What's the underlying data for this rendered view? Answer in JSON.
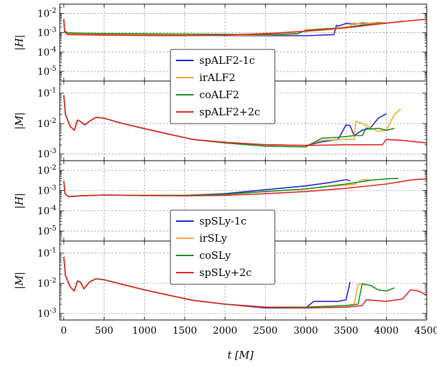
{
  "xlabel": "t [M]",
  "x_ticks": [
    0,
    500,
    1000,
    1500,
    2000,
    2500,
    3000,
    3500,
    4000,
    4500
  ],
  "colors": {
    "blue": "#1f1fcc",
    "orange": "#f5a623",
    "green": "#1a8a1a",
    "red": "#e02020"
  },
  "chart_data": [
    {
      "type": "line",
      "ylabel": "|H|",
      "ylog": true,
      "xlim": [
        -50,
        4500
      ],
      "ylim": [
        3.2e-06,
        0.03
      ],
      "y_ticks": [
        {
          "v": 0.01,
          "label": "10^-2"
        },
        {
          "v": 0.001,
          "label": "10^-3"
        },
        {
          "v": 0.0001,
          "label": "10^-4"
        },
        {
          "v": 1e-05,
          "label": "10^-5"
        }
      ],
      "legend": {
        "placement": "lower-center",
        "entries": [
          "spALF2-1c",
          "irALF2",
          "coALF2",
          "spALF2+2c"
        ]
      },
      "series": [
        {
          "name": "spALF2-1c",
          "color": "blue",
          "x": [
            0,
            10,
            50,
            200,
            500,
            1000,
            1500,
            2000,
            2500,
            3000,
            3350,
            3380,
            3400,
            3500,
            3600,
            3700,
            3800,
            3900,
            4000
          ],
          "y": [
            0.005,
            0.0012,
            0.0009,
            0.00085,
            0.0008,
            0.0008,
            0.00075,
            0.00072,
            0.0007,
            0.0007,
            0.0008,
            0.0024,
            0.0022,
            0.003,
            0.0028,
            0.0032,
            0.0031,
            0.0034,
            0.0032
          ]
        },
        {
          "name": "irALF2",
          "color": "orange",
          "x": [
            0,
            10,
            50,
            200,
            500,
            1000,
            1500,
            2000,
            2500,
            2900,
            2950,
            3000,
            3200,
            3400,
            3550,
            3580,
            3700,
            3800,
            3900,
            4000,
            4100,
            4200
          ],
          "y": [
            0.005,
            0.0012,
            0.0009,
            0.00085,
            0.0008,
            0.0008,
            0.00078,
            0.00075,
            0.00075,
            0.00085,
            0.0011,
            0.0014,
            0.0016,
            0.0018,
            0.0021,
            0.0031,
            0.0029,
            0.0031,
            0.0033,
            0.0032,
            0.0035,
            0.004
          ]
        },
        {
          "name": "coALF2",
          "color": "green",
          "x": [
            0,
            10,
            50,
            200,
            500,
            1000,
            1500,
            2000,
            2500,
            2900,
            3000,
            3200,
            3400,
            3500,
            3600,
            3700,
            3800,
            3900,
            4000
          ],
          "y": [
            0.005,
            0.0012,
            0.001,
            0.00095,
            0.0009,
            0.00088,
            0.00085,
            0.00082,
            0.0008,
            0.0009,
            0.0013,
            0.0015,
            0.0017,
            0.0018,
            0.0022,
            0.0025,
            0.0027,
            0.0029,
            0.003
          ]
        },
        {
          "name": "spALF2+2c",
          "color": "red",
          "x": [
            0,
            10,
            50,
            200,
            500,
            1000,
            1500,
            2000,
            2500,
            3000,
            3300,
            3600,
            3900,
            4200,
            4500
          ],
          "y": [
            0.005,
            0.0011,
            0.0008,
            0.00078,
            0.00075,
            0.00072,
            0.0007,
            0.00075,
            0.0009,
            0.0012,
            0.0015,
            0.002,
            0.0028,
            0.0038,
            0.005
          ]
        }
      ]
    },
    {
      "type": "line",
      "ylabel": "|M|",
      "ylog": true,
      "xlim": [
        -50,
        4500
      ],
      "ylim": [
        0.0006,
        0.25
      ],
      "y_ticks": [
        {
          "v": 0.1,
          "label": "10^-1"
        },
        {
          "v": 0.01,
          "label": "10^-2"
        },
        {
          "v": 0.001,
          "label": "10^-3"
        }
      ],
      "series": [
        {
          "name": "spALF2-1c",
          "color": "blue",
          "x": [
            0,
            20,
            80,
            130,
            170,
            210,
            260,
            320,
            400,
            500,
            700,
            1000,
            1300,
            1600,
            2000,
            2500,
            3000,
            3200,
            3400,
            3500,
            3550,
            3600,
            3700,
            3800,
            3900,
            4000
          ],
          "y": [
            0.085,
            0.02,
            0.008,
            0.006,
            0.013,
            0.0115,
            0.009,
            0.012,
            0.016,
            0.015,
            0.0105,
            0.0068,
            0.0045,
            0.003,
            0.0024,
            0.002,
            0.0019,
            0.0025,
            0.003,
            0.009,
            0.0085,
            0.004,
            0.006,
            0.007,
            0.015,
            0.021
          ]
        },
        {
          "name": "irALF2",
          "color": "orange",
          "x": [
            0,
            20,
            80,
            130,
            170,
            210,
            260,
            320,
            400,
            500,
            700,
            1000,
            1300,
            1600,
            2000,
            2500,
            3000,
            3200,
            3500,
            3600,
            3620,
            3700,
            3800,
            3900,
            4000,
            4100,
            4180
          ],
          "y": [
            0.085,
            0.02,
            0.008,
            0.006,
            0.013,
            0.0115,
            0.009,
            0.012,
            0.016,
            0.015,
            0.0105,
            0.0068,
            0.0045,
            0.003,
            0.0024,
            0.002,
            0.0019,
            0.0028,
            0.003,
            0.003,
            0.012,
            0.01,
            0.0075,
            0.0055,
            0.006,
            0.02,
            0.03
          ]
        },
        {
          "name": "coALF2",
          "color": "green",
          "x": [
            0,
            20,
            80,
            130,
            170,
            210,
            260,
            320,
            400,
            500,
            700,
            1000,
            1300,
            1600,
            2000,
            2500,
            3000,
            3200,
            3400,
            3600,
            3700,
            3750,
            3800,
            3900,
            4000,
            4100
          ],
          "y": [
            0.085,
            0.02,
            0.008,
            0.006,
            0.013,
            0.0115,
            0.009,
            0.012,
            0.016,
            0.015,
            0.0105,
            0.0068,
            0.0045,
            0.003,
            0.0023,
            0.0018,
            0.0017,
            0.0033,
            0.0035,
            0.004,
            0.004,
            0.0072,
            0.0065,
            0.007,
            0.006,
            0.007
          ]
        },
        {
          "name": "spALF2+2c",
          "color": "red",
          "x": [
            0,
            20,
            80,
            130,
            170,
            210,
            260,
            320,
            400,
            500,
            700,
            1000,
            1300,
            1600,
            2000,
            2500,
            3000,
            3500,
            3950,
            4000,
            4200,
            4500
          ],
          "y": [
            0.085,
            0.02,
            0.008,
            0.006,
            0.013,
            0.0115,
            0.009,
            0.012,
            0.016,
            0.015,
            0.0105,
            0.0068,
            0.0045,
            0.003,
            0.0024,
            0.002,
            0.0019,
            0.002,
            0.002,
            0.003,
            0.0028,
            0.0023
          ]
        }
      ]
    },
    {
      "type": "line",
      "ylabel": "|H|",
      "ylog": true,
      "xlim": [
        -50,
        4500
      ],
      "ylim": [
        3.2e-06,
        0.03
      ],
      "y_ticks": [
        {
          "v": 0.01,
          "label": "10^-2"
        },
        {
          "v": 0.001,
          "label": "10^-3"
        },
        {
          "v": 0.0001,
          "label": "10^-4"
        },
        {
          "v": 1e-05,
          "label": "10^-5"
        }
      ],
      "legend": {
        "placement": "lower-center",
        "entries": [
          "spSLy-1c",
          "irSLy",
          "coSLy",
          "spSLy+2c"
        ]
      },
      "series": [
        {
          "name": "spSLy-1c",
          "color": "blue",
          "x": [
            0,
            15,
            60,
            200,
            500,
            1000,
            1500,
            2000,
            2500,
            3000,
            3300,
            3500,
            3550
          ],
          "y": [
            0.003,
            0.0007,
            0.0005,
            0.00055,
            0.0006,
            0.00058,
            0.00058,
            0.0007,
            0.0011,
            0.0017,
            0.0025,
            0.0035,
            0.003
          ]
        },
        {
          "name": "irSLy",
          "color": "orange",
          "x": [
            0,
            15,
            60,
            200,
            500,
            1000,
            1500,
            2000,
            2500,
            3000,
            3300,
            3600,
            3700,
            3800
          ],
          "y": [
            0.003,
            0.0007,
            0.0005,
            0.00055,
            0.0006,
            0.00058,
            0.00058,
            0.00065,
            0.0009,
            0.0012,
            0.0016,
            0.002,
            0.0035,
            0.0033
          ]
        },
        {
          "name": "coSLy",
          "color": "green",
          "x": [
            0,
            15,
            60,
            200,
            500,
            1000,
            1500,
            2000,
            2500,
            3000,
            3500,
            3800,
            4000,
            4150
          ],
          "y": [
            0.003,
            0.0007,
            0.0005,
            0.00055,
            0.0006,
            0.00058,
            0.00058,
            0.00065,
            0.0009,
            0.0012,
            0.0021,
            0.0032,
            0.0038,
            0.004
          ]
        },
        {
          "name": "spSLy+2c",
          "color": "red",
          "x": [
            0,
            15,
            60,
            200,
            500,
            1000,
            1500,
            2000,
            2500,
            3000,
            3500,
            4000,
            4300,
            4500
          ],
          "y": [
            0.003,
            0.0007,
            0.0005,
            0.00055,
            0.0006,
            0.00056,
            0.00055,
            0.00058,
            0.0007,
            0.0009,
            0.0013,
            0.0021,
            0.0033,
            0.0038
          ]
        }
      ]
    },
    {
      "type": "line",
      "ylabel": "|M|",
      "ylog": true,
      "xlim": [
        -50,
        4500
      ],
      "ylim": [
        0.0006,
        0.25
      ],
      "y_ticks": [
        {
          "v": 0.1,
          "label": "10^-1"
        },
        {
          "v": 0.01,
          "label": "10^-2"
        },
        {
          "v": 0.001,
          "label": "10^-3"
        }
      ],
      "series": [
        {
          "name": "spSLy-1c",
          "color": "blue",
          "x": [
            0,
            20,
            80,
            130,
            170,
            210,
            250,
            320,
            400,
            500,
            700,
            1000,
            1300,
            1600,
            2000,
            2500,
            3000,
            3100,
            3400,
            3500,
            3550
          ],
          "y": [
            0.075,
            0.018,
            0.0075,
            0.0055,
            0.012,
            0.0105,
            0.0065,
            0.011,
            0.014,
            0.013,
            0.0095,
            0.006,
            0.004,
            0.0027,
            0.002,
            0.0015,
            0.0015,
            0.0025,
            0.0025,
            0.0028,
            0.011
          ]
        },
        {
          "name": "irSLy",
          "color": "orange",
          "x": [
            0,
            20,
            80,
            130,
            170,
            210,
            250,
            320,
            400,
            500,
            700,
            1000,
            1300,
            1600,
            2000,
            2500,
            3000,
            3500,
            3600,
            3650,
            3700,
            3750
          ],
          "y": [
            0.075,
            0.018,
            0.0075,
            0.0055,
            0.012,
            0.0105,
            0.0065,
            0.011,
            0.014,
            0.013,
            0.0095,
            0.006,
            0.004,
            0.0027,
            0.002,
            0.0016,
            0.0016,
            0.0018,
            0.002,
            0.009,
            0.0095,
            0.0085
          ]
        },
        {
          "name": "coSLy",
          "color": "green",
          "x": [
            0,
            20,
            80,
            130,
            170,
            210,
            250,
            320,
            400,
            500,
            700,
            1000,
            1300,
            1600,
            2000,
            2500,
            3000,
            3500,
            3650,
            3700,
            3800,
            3900,
            4000,
            4100
          ],
          "y": [
            0.075,
            0.018,
            0.0075,
            0.0055,
            0.012,
            0.0105,
            0.0065,
            0.011,
            0.014,
            0.013,
            0.0095,
            0.006,
            0.004,
            0.0027,
            0.002,
            0.0016,
            0.0016,
            0.0018,
            0.002,
            0.0095,
            0.0085,
            0.006,
            0.0055,
            0.007
          ]
        },
        {
          "name": "spSLy+2c",
          "color": "red",
          "x": [
            0,
            20,
            80,
            130,
            170,
            210,
            250,
            320,
            400,
            500,
            700,
            1000,
            1300,
            1600,
            2000,
            2500,
            3000,
            3500,
            3700,
            3750,
            4000,
            4200,
            4300,
            4400,
            4500
          ],
          "y": [
            0.075,
            0.018,
            0.0075,
            0.0055,
            0.012,
            0.0105,
            0.0065,
            0.011,
            0.014,
            0.013,
            0.0095,
            0.006,
            0.004,
            0.0027,
            0.002,
            0.0016,
            0.0015,
            0.0016,
            0.0018,
            0.0028,
            0.0025,
            0.003,
            0.006,
            0.0055,
            0.004
          ]
        }
      ]
    }
  ]
}
